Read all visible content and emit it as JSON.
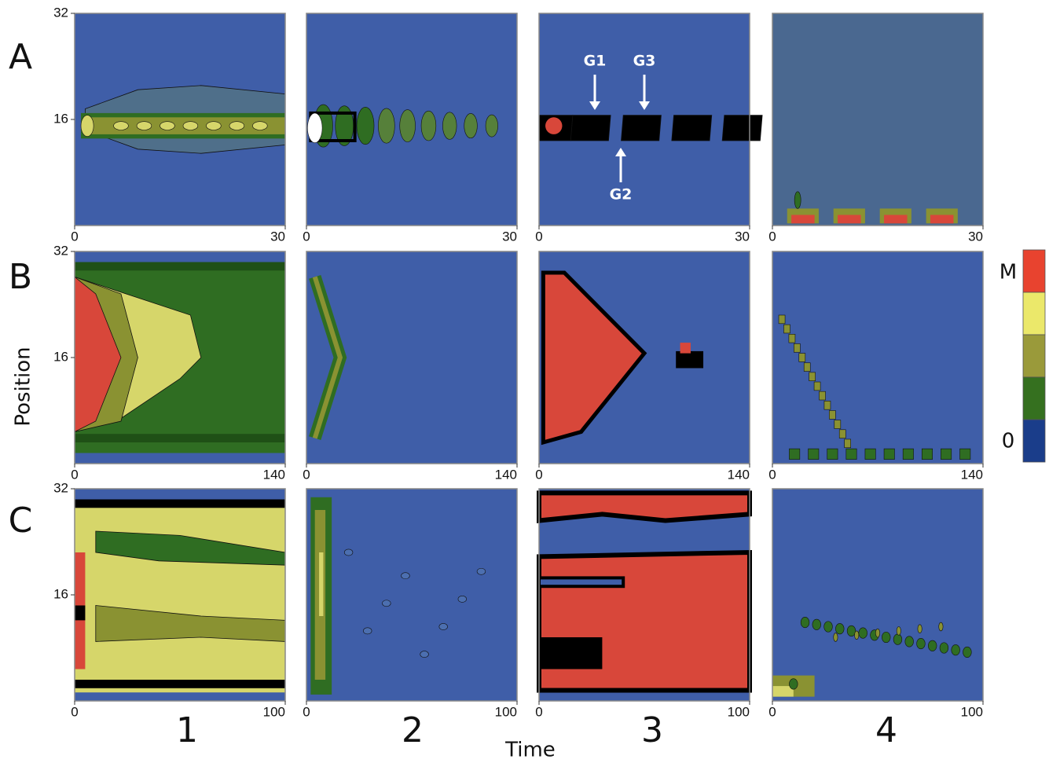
{
  "figure": {
    "row_labels": [
      "A",
      "B",
      "C"
    ],
    "column_labels": [
      "1",
      "2",
      "3",
      "4"
    ],
    "x_label": "Time",
    "y_label": "Position",
    "colorbar": {
      "colors": [
        "#e8432f",
        "#ebe86a",
        "#9a9a3a",
        "#35701f",
        "#1a3d8a"
      ],
      "top_label": "M",
      "bottom_label": "0"
    }
  },
  "chart_data": [
    {
      "type": "contour",
      "xlim": [
        0,
        30
      ],
      "xticks": [
        0,
        30
      ],
      "ylim": [
        0,
        32
      ],
      "yticks": [
        16,
        32
      ]
    },
    {
      "type": "contour",
      "xlim": [
        0,
        30
      ],
      "xticks": [
        0,
        30
      ],
      "ylim": [
        0,
        32
      ]
    },
    {
      "type": "contour",
      "xlim": [
        0,
        30
      ],
      "xticks": [
        0,
        30
      ],
      "ylim": [
        0,
        32
      ],
      "annotations": [
        "G1",
        "G3",
        "G2"
      ]
    },
    {
      "type": "contour",
      "xlim": [
        0,
        30
      ],
      "xticks": [
        0,
        30
      ],
      "ylim": [
        0,
        32
      ]
    },
    {
      "type": "contour",
      "xlim": [
        0,
        140
      ],
      "xticks": [
        0,
        140
      ],
      "ylim": [
        0,
        32
      ],
      "yticks": [
        16,
        32
      ]
    },
    {
      "type": "contour",
      "xlim": [
        0,
        140
      ],
      "xticks": [
        0,
        140
      ],
      "ylim": [
        0,
        32
      ]
    },
    {
      "type": "contour",
      "xlim": [
        0,
        140
      ],
      "xticks": [
        0,
        140
      ],
      "ylim": [
        0,
        32
      ]
    },
    {
      "type": "contour",
      "xlim": [
        0,
        140
      ],
      "xticks": [
        0,
        140
      ],
      "ylim": [
        0,
        32
      ]
    },
    {
      "type": "contour",
      "xlim": [
        0,
        100
      ],
      "xticks": [
        0,
        100
      ],
      "ylim": [
        0,
        32
      ],
      "yticks": [
        16,
        32
      ]
    },
    {
      "type": "contour",
      "xlim": [
        0,
        100
      ],
      "xticks": [
        0,
        100
      ],
      "ylim": [
        0,
        32
      ]
    },
    {
      "type": "contour",
      "xlim": [
        0,
        100
      ],
      "xticks": [
        0,
        100
      ],
      "ylim": [
        0,
        32
      ]
    },
    {
      "type": "contour",
      "xlim": [
        0,
        100
      ],
      "xticks": [
        0,
        100
      ],
      "ylim": [
        0,
        32
      ]
    }
  ]
}
